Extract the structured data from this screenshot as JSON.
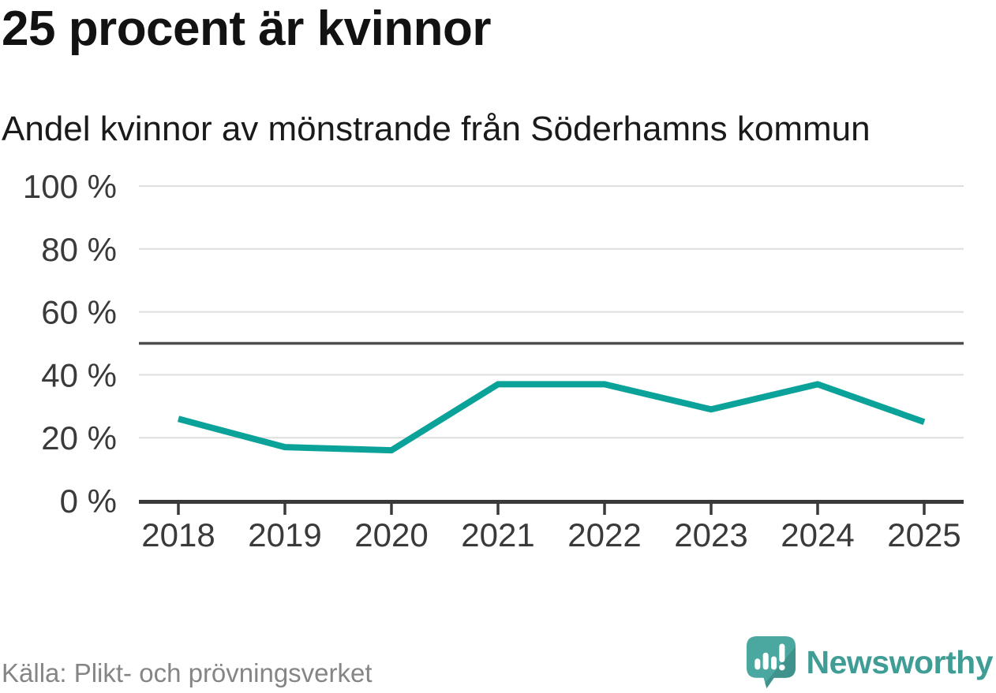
{
  "header": {
    "title": "25 procent är kvinnor",
    "subtitle": "Andel kvinnor av mönstrande från Söderhamns kommun"
  },
  "footer": {
    "source": "Källa: Plikt- och prövningsverket",
    "brand": "Newsworthy"
  },
  "colors": {
    "line": "#0aa299",
    "grid": "#dedede",
    "reference_line": "#4d4d4d",
    "axis": "#3a3a3a",
    "tick_text": "#3a3a3a",
    "source_text": "#858585",
    "brand_teal": "#4ba8a1",
    "brand_teal_shadow": "#40938c",
    "brand_text": "#3f9d96"
  },
  "chart_data": {
    "type": "line",
    "title": "25 procent är kvinnor",
    "subtitle": "Andel kvinnor av mönstrande från Söderhamns kommun",
    "categories": [
      "2018",
      "2019",
      "2020",
      "2021",
      "2022",
      "2023",
      "2024",
      "2025"
    ],
    "series": [
      {
        "name": "Andel kvinnor av mönstrande",
        "values": [
          26,
          17,
          16,
          37,
          37,
          29,
          37,
          25
        ]
      }
    ],
    "unit": "%",
    "ylim": [
      0,
      100
    ],
    "yticks": [
      0,
      20,
      40,
      60,
      80,
      100
    ],
    "ytick_labels": [
      "0 %",
      "20 %",
      "40 %",
      "60 %",
      "80 %",
      "100 %"
    ],
    "reference_line_value": 50,
    "grid": true,
    "legend": false,
    "source_label": "Källa: Plikt- och prövningsverket"
  }
}
